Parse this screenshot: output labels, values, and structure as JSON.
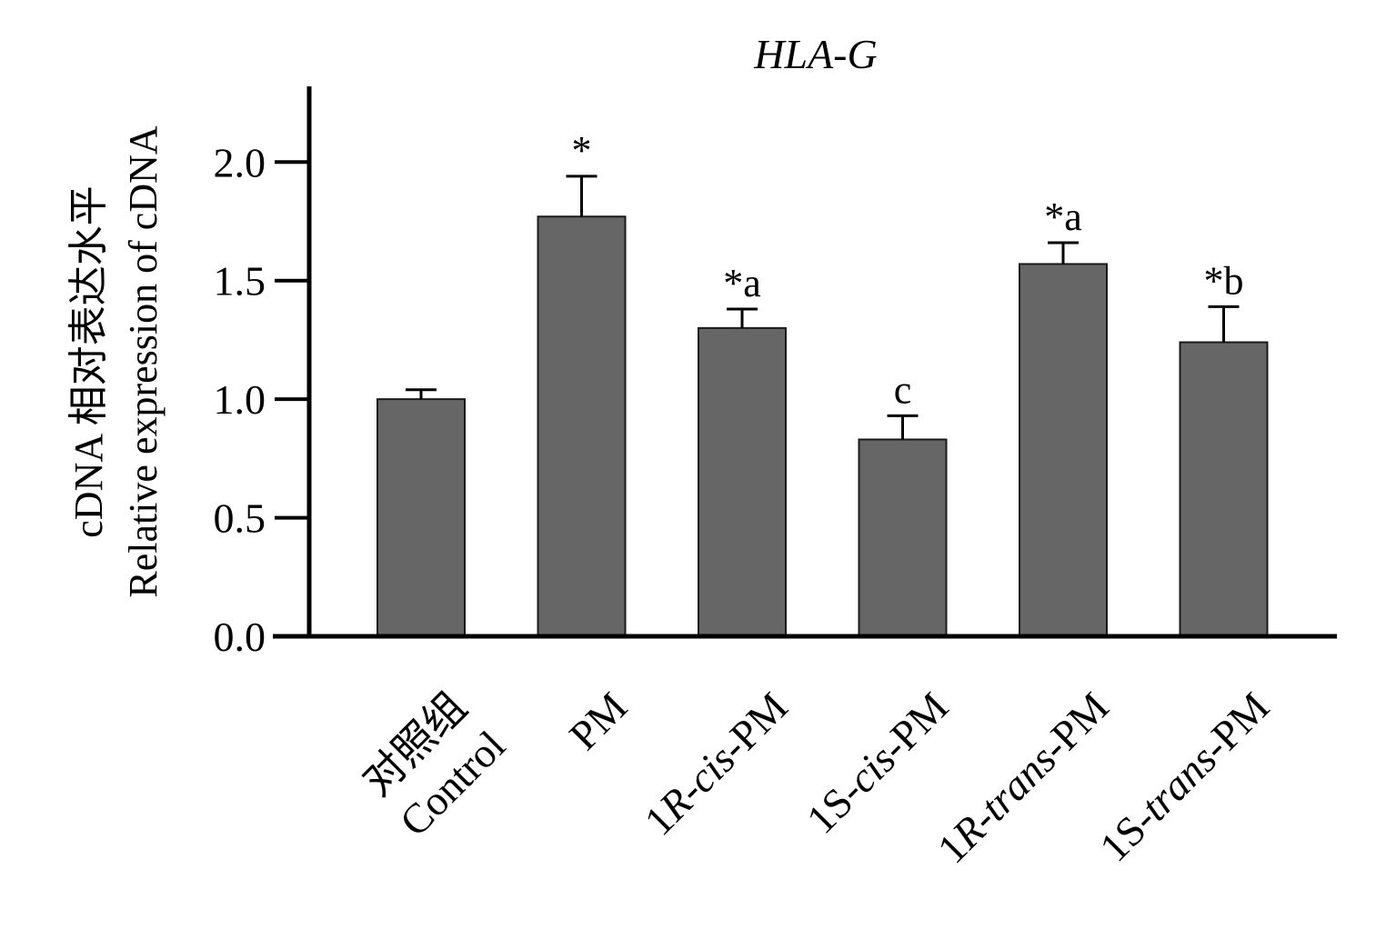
{
  "chart_data": {
    "type": "bar",
    "title": "HLA-G",
    "ylabel_lines": [
      "cDNA 相对表达水平",
      "Relative expression of cDNA"
    ],
    "ylim": [
      0,
      2.3
    ],
    "yticks": [
      "0.0",
      "0.5",
      "1.0",
      "1.5",
      "2.0"
    ],
    "categories": [
      {
        "lines": [
          [
            {
              "t": "对照组",
              "i": false
            }
          ],
          [
            {
              "t": "Control",
              "i": false
            }
          ]
        ]
      },
      {
        "lines": [
          [
            {
              "t": "PM",
              "i": false
            }
          ]
        ]
      },
      {
        "lines": [
          [
            {
              "t": "1",
              "i": false
            },
            {
              "t": "R",
              "i": true
            },
            {
              "t": "-",
              "i": false
            },
            {
              "t": "cis",
              "i": true
            },
            {
              "t": "-PM",
              "i": false
            }
          ]
        ]
      },
      {
        "lines": [
          [
            {
              "t": "1S-",
              "i": false
            },
            {
              "t": "cis",
              "i": true
            },
            {
              "t": "-PM",
              "i": false
            }
          ]
        ]
      },
      {
        "lines": [
          [
            {
              "t": "1",
              "i": false
            },
            {
              "t": "R",
              "i": true
            },
            {
              "t": "-",
              "i": false
            },
            {
              "t": "trans",
              "i": true
            },
            {
              "t": "-PM",
              "i": false
            }
          ]
        ]
      },
      {
        "lines": [
          [
            {
              "t": "1S-",
              "i": false
            },
            {
              "t": "trans",
              "i": true
            },
            {
              "t": "-PM",
              "i": false
            }
          ]
        ]
      }
    ],
    "values": [
      1.0,
      1.77,
      1.3,
      0.83,
      1.57,
      1.24
    ],
    "errors": [
      0.04,
      0.17,
      0.08,
      0.1,
      0.09,
      0.15
    ],
    "annotations": [
      "",
      "*",
      "*a",
      "c",
      "*a",
      "*b"
    ],
    "bar_color": "#666666",
    "grid": false,
    "legend": "none"
  }
}
